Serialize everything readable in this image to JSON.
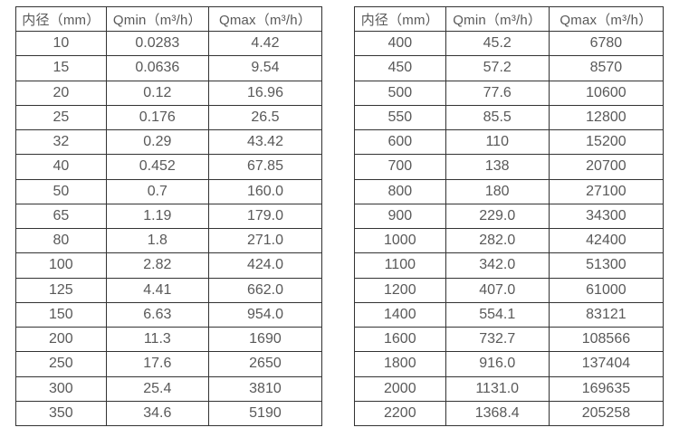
{
  "tables": {
    "left": {
      "headers": [
        "内径（mm）",
        "Qmin（m³/h）",
        "Qmax（m³/h）"
      ],
      "rows": [
        [
          "10",
          "0.0283",
          "4.42"
        ],
        [
          "15",
          "0.0636",
          "9.54"
        ],
        [
          "20",
          "0.12",
          "16.96"
        ],
        [
          "25",
          "0.176",
          "26.5"
        ],
        [
          "32",
          "0.29",
          "43.42"
        ],
        [
          "40",
          "0.452",
          "67.85"
        ],
        [
          "50",
          "0.7",
          "160.0"
        ],
        [
          "65",
          "1.19",
          "179.0"
        ],
        [
          "80",
          "1.8",
          "271.0"
        ],
        [
          "100",
          "2.82",
          "424.0"
        ],
        [
          "125",
          "4.41",
          "662.0"
        ],
        [
          "150",
          "6.63",
          "954.0"
        ],
        [
          "200",
          "11.3",
          "1690"
        ],
        [
          "250",
          "17.6",
          "2650"
        ],
        [
          "300",
          "25.4",
          "3810"
        ],
        [
          "350",
          "34.6",
          "5190"
        ]
      ]
    },
    "right": {
      "headers": [
        "内径（mm）",
        "Qmin（m³/h）",
        "Qmax（m³/h）"
      ],
      "rows": [
        [
          "400",
          "45.2",
          "6780"
        ],
        [
          "450",
          "57.2",
          "8570"
        ],
        [
          "500",
          "77.6",
          "10600"
        ],
        [
          "550",
          "85.5",
          "12800"
        ],
        [
          "600",
          "110",
          "15200"
        ],
        [
          "700",
          "138",
          "20700"
        ],
        [
          "800",
          "180",
          "27100"
        ],
        [
          "900",
          "229.0",
          "34300"
        ],
        [
          "1000",
          "282.0",
          "42400"
        ],
        [
          "1100",
          "342.0",
          "51300"
        ],
        [
          "1200",
          "407.0",
          "61000"
        ],
        [
          "1400",
          "554.1",
          "83121"
        ],
        [
          "1600",
          "732.7",
          "108566"
        ],
        [
          "1800",
          "916.0",
          "137404"
        ],
        [
          "2000",
          "1131.0",
          "169635"
        ],
        [
          "2200",
          "1368.4",
          "205258"
        ]
      ]
    }
  }
}
